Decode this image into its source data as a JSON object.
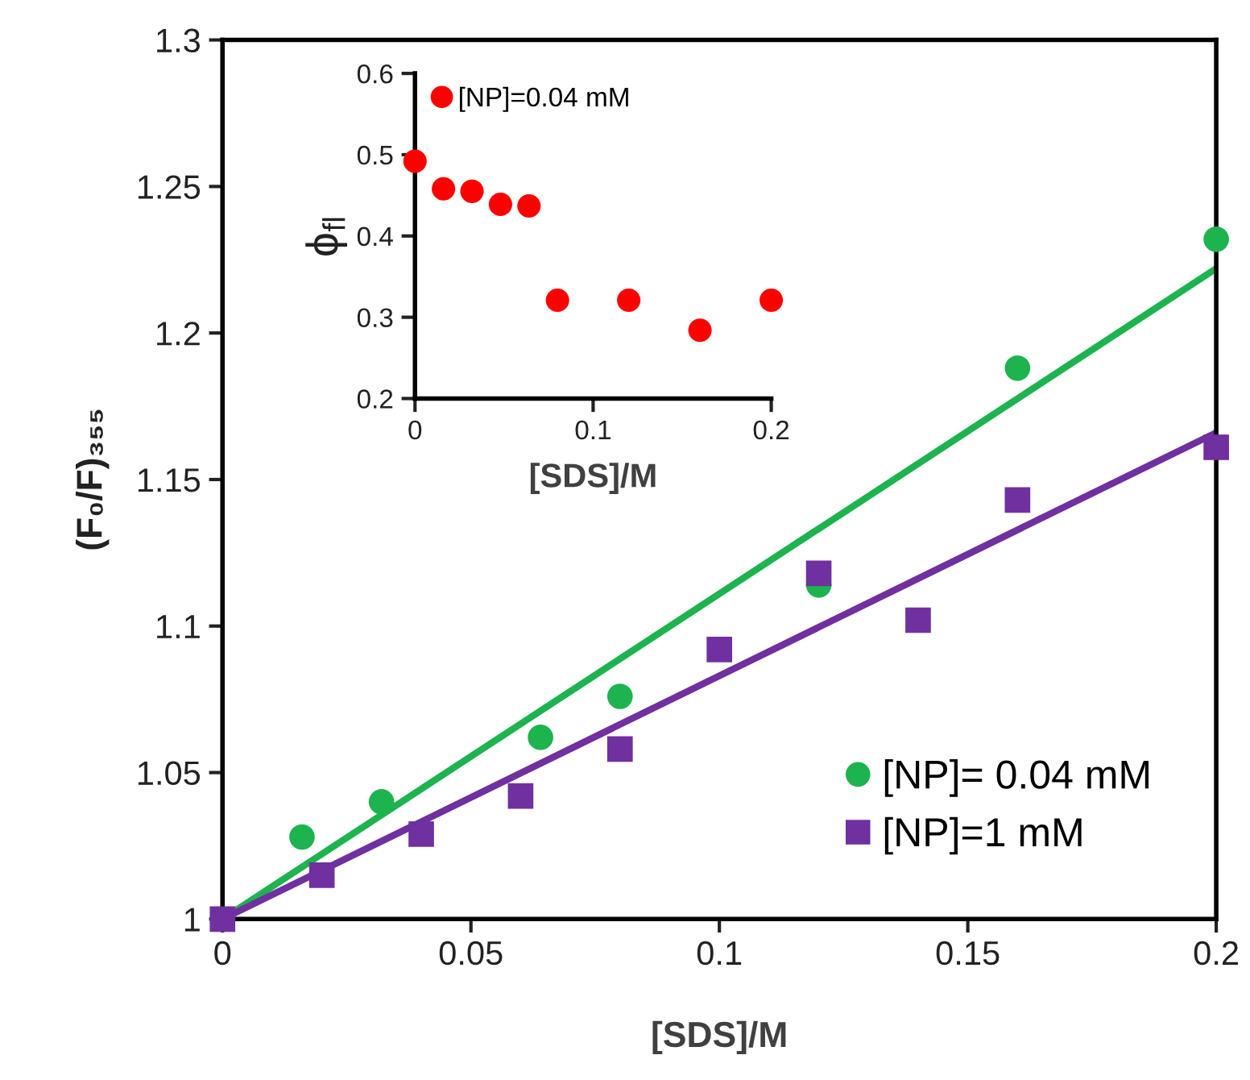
{
  "chart_data": [
    {
      "type": "scatter",
      "xlabel": "[SDS]/M",
      "ylabel": "(F₀/F)₃₅₅",
      "xlim": [
        0,
        0.2
      ],
      "ylim": [
        1,
        1.3
      ],
      "xticks": [
        0,
        0.05,
        0.1,
        0.15,
        0.2
      ],
      "yticks": [
        1,
        1.05,
        1.1,
        1.15,
        1.2,
        1.25,
        1.3
      ],
      "legend": "bottom right",
      "grid": false,
      "series": [
        {
          "name": "[NP]= 0.04 mM",
          "color": "#1db34f",
          "marker": "circle",
          "x": [
            0.016,
            0.032,
            0.064,
            0.08,
            0.12,
            0.16,
            0.2
          ],
          "values": [
            1.028,
            1.04,
            1.062,
            1.076,
            1.114,
            1.188,
            1.232
          ]
        },
        {
          "name": "[NP]=1 mM",
          "color": "#7030a0",
          "marker": "square",
          "x": [
            0,
            0.02,
            0.04,
            0.06,
            0.08,
            0.1,
            0.12,
            0.14,
            0.16,
            0.2
          ],
          "values": [
            1,
            1.015,
            1.029,
            1.042,
            1.058,
            1.092,
            1.118,
            1.102,
            1.143,
            1.161
          ]
        },
        {
          "type": "line",
          "color": "#1db34f",
          "marker": "none",
          "line_style": "solid",
          "x": [
            0,
            0.2
          ],
          "values": [
            1,
            1.222
          ]
        },
        {
          "type": "line",
          "color": "#7030a0",
          "marker": "none",
          "line_style": "solid",
          "x": [
            0,
            0.2
          ],
          "values": [
            1,
            1.166
          ]
        }
      ]
    },
    {
      "type": "scatter",
      "xlabel": "[SDS]/M",
      "ylabel": "ϕ$_{fl}$",
      "xlim": [
        0,
        0.2
      ],
      "ylim": [
        0.2,
        0.6
      ],
      "xticks": [
        0,
        0.1,
        0.2
      ],
      "yticks": [
        0.2,
        0.3,
        0.4,
        0.5,
        0.6
      ],
      "legend": "top left",
      "grid": false,
      "series": [
        {
          "name": "[NP]=0.04 mM",
          "color": "#ff0000",
          "marker": "circle",
          "x": [
            0,
            0.016,
            0.032,
            0.048,
            0.064,
            0.08,
            0.12,
            0.16,
            0.2
          ],
          "values": [
            0.492,
            0.458,
            0.455,
            0.439,
            0.437,
            0.321,
            0.321,
            0.284,
            0.321
          ]
        }
      ]
    }
  ]
}
